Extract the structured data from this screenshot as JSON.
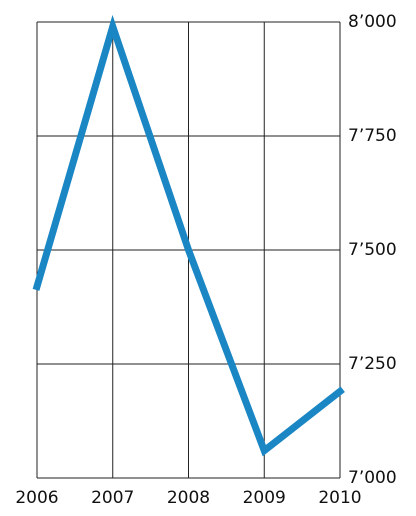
{
  "chart_data": {
    "type": "line",
    "x": [
      2006,
      2007,
      2008,
      2009,
      2010
    ],
    "series": [
      {
        "color": "#1a86c4",
        "values": [
          7420,
          7990,
          7500,
          7060,
          7190
        ]
      }
    ],
    "xlim": [
      2006,
      2010
    ],
    "xticks": [
      2006,
      2007,
      2008,
      2009,
      2010
    ],
    "ylim": [
      7000,
      8000
    ],
    "yticks": [
      {
        "value": 7000,
        "label": "7’000"
      },
      {
        "value": 7250,
        "label": "7’250"
      },
      {
        "value": 7500,
        "label": "7’500"
      },
      {
        "value": 7750,
        "label": "7’750"
      },
      {
        "value": 8000,
        "label": "8’000"
      }
    ],
    "grid": true,
    "y_axis_side": "right"
  }
}
